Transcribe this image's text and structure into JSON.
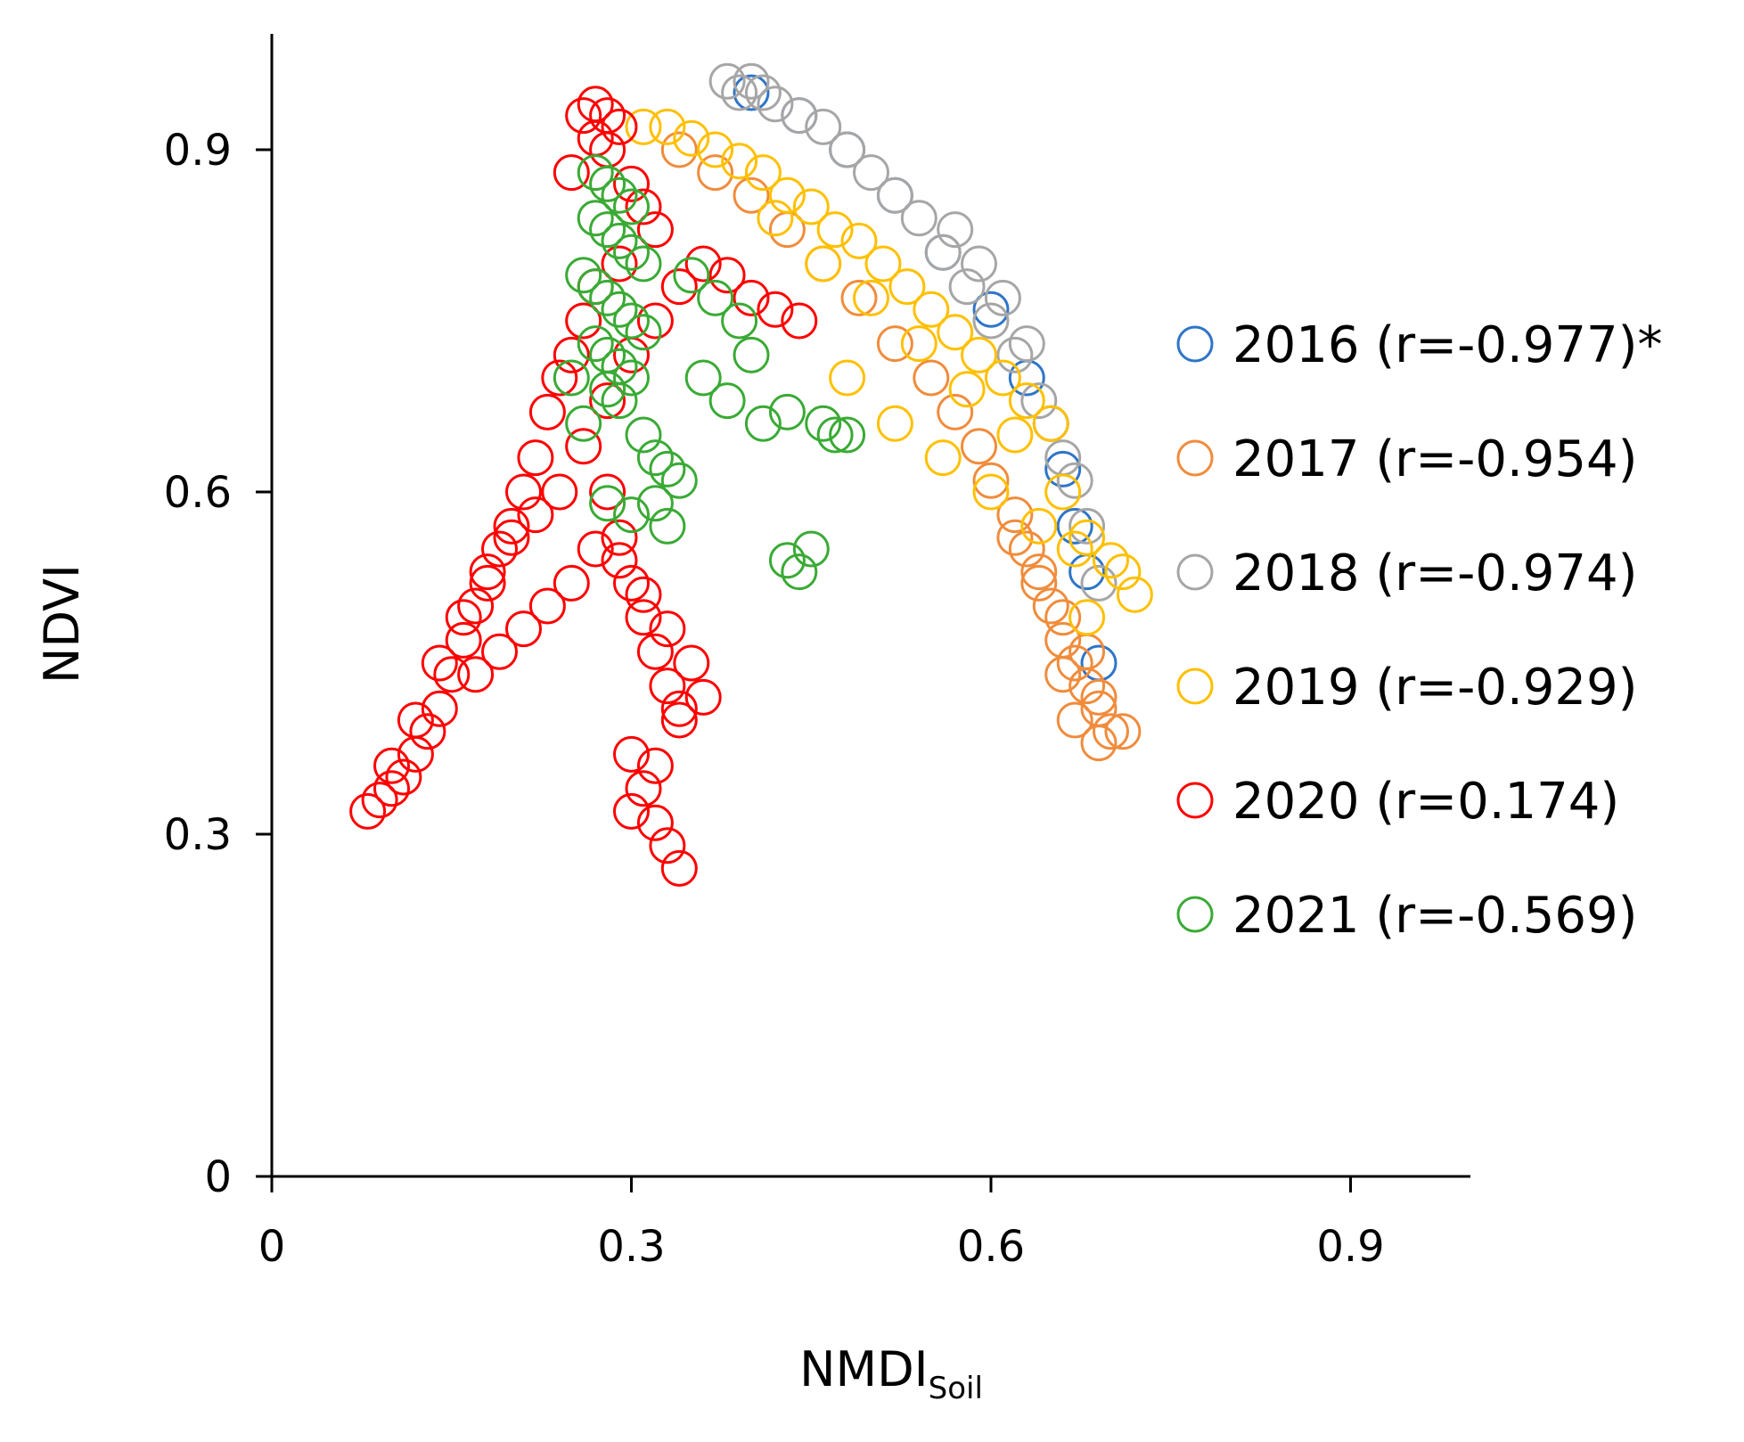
{
  "chart_data": {
    "type": "scatter",
    "title": "",
    "xlabel": "NMDI",
    "xlabel_subscript": "Soil",
    "ylabel": "NDVI",
    "xlim": [
      0,
      1.0
    ],
    "ylim": [
      0,
      1.0
    ],
    "xticks": [
      0,
      0.3,
      0.6,
      0.9
    ],
    "yticks": [
      0,
      0.3,
      0.6,
      0.9
    ],
    "xtick_labels": [
      "0",
      "0.3",
      "0.6",
      "0.9"
    ],
    "ytick_labels": [
      "0",
      "0.3",
      "0.6",
      "0.9"
    ],
    "marker": "open-circle",
    "legend_position": "right",
    "series": [
      {
        "name": "2016 (r=-0.977)*",
        "color": "#2E75C8",
        "x": [
          0.4,
          0.44,
          0.48,
          0.52,
          0.56,
          0.6,
          0.63,
          0.65,
          0.66,
          0.67,
          0.68,
          0.69
        ],
        "y": [
          0.95,
          0.93,
          0.9,
          0.86,
          0.81,
          0.76,
          0.7,
          0.66,
          0.62,
          0.57,
          0.53,
          0.45
        ]
      },
      {
        "name": "2017 (r=-0.954)",
        "color": "#F08C3C",
        "x": [
          0.34,
          0.37,
          0.4,
          0.43,
          0.46,
          0.49,
          0.52,
          0.55,
          0.57,
          0.59,
          0.6,
          0.62,
          0.63,
          0.64,
          0.65,
          0.66,
          0.67,
          0.68,
          0.69,
          0.7,
          0.62,
          0.64,
          0.66,
          0.68,
          0.69,
          0.71,
          0.66,
          0.67,
          0.69
        ],
        "y": [
          0.9,
          0.88,
          0.86,
          0.83,
          0.8,
          0.77,
          0.73,
          0.7,
          0.67,
          0.64,
          0.61,
          0.58,
          0.55,
          0.52,
          0.5,
          0.47,
          0.45,
          0.43,
          0.41,
          0.39,
          0.56,
          0.53,
          0.49,
          0.46,
          0.42,
          0.39,
          0.44,
          0.4,
          0.38
        ]
      },
      {
        "name": "2018 (r=-0.974)",
        "color": "#A6A6A6",
        "x": [
          0.38,
          0.39,
          0.4,
          0.41,
          0.42,
          0.44,
          0.46,
          0.48,
          0.5,
          0.52,
          0.54,
          0.56,
          0.58,
          0.6,
          0.62,
          0.64,
          0.65,
          0.66,
          0.67,
          0.68,
          0.69,
          0.57,
          0.59,
          0.61,
          0.63
        ],
        "y": [
          0.96,
          0.95,
          0.96,
          0.95,
          0.94,
          0.93,
          0.92,
          0.9,
          0.88,
          0.86,
          0.84,
          0.81,
          0.78,
          0.75,
          0.72,
          0.68,
          0.66,
          0.63,
          0.61,
          0.57,
          0.52,
          0.83,
          0.8,
          0.77,
          0.73
        ]
      },
      {
        "name": "2019 (r=-0.929)",
        "color": "#FFC000",
        "x": [
          0.31,
          0.33,
          0.35,
          0.37,
          0.39,
          0.41,
          0.43,
          0.45,
          0.47,
          0.49,
          0.51,
          0.53,
          0.55,
          0.57,
          0.59,
          0.61,
          0.63,
          0.65,
          0.42,
          0.46,
          0.5,
          0.54,
          0.58,
          0.62,
          0.66,
          0.68,
          0.7,
          0.72,
          0.48,
          0.52,
          0.56,
          0.6,
          0.64,
          0.67,
          0.71,
          0.68
        ],
        "y": [
          0.92,
          0.92,
          0.91,
          0.9,
          0.89,
          0.88,
          0.86,
          0.85,
          0.83,
          0.82,
          0.8,
          0.78,
          0.76,
          0.74,
          0.72,
          0.7,
          0.68,
          0.66,
          0.84,
          0.8,
          0.77,
          0.73,
          0.69,
          0.65,
          0.6,
          0.56,
          0.54,
          0.51,
          0.7,
          0.66,
          0.63,
          0.6,
          0.57,
          0.55,
          0.53,
          0.49
        ]
      },
      {
        "name": "2020 (r=0.174)",
        "color": "#FF0000",
        "x": [
          0.26,
          0.27,
          0.28,
          0.29,
          0.27,
          0.28,
          0.25,
          0.3,
          0.31,
          0.32,
          0.29,
          0.27,
          0.26,
          0.25,
          0.24,
          0.23,
          0.22,
          0.21,
          0.2,
          0.19,
          0.18,
          0.17,
          0.16,
          0.15,
          0.14,
          0.13,
          0.12,
          0.11,
          0.1,
          0.09,
          0.08,
          0.1,
          0.12,
          0.14,
          0.16,
          0.18,
          0.2,
          0.22,
          0.24,
          0.26,
          0.28,
          0.3,
          0.32,
          0.34,
          0.36,
          0.38,
          0.4,
          0.42,
          0.44,
          0.28,
          0.29,
          0.3,
          0.31,
          0.32,
          0.33,
          0.34,
          0.3,
          0.31,
          0.32,
          0.33,
          0.34,
          0.29,
          0.31,
          0.33,
          0.35,
          0.36,
          0.34,
          0.32,
          0.3,
          0.27,
          0.25,
          0.23,
          0.21,
          0.19,
          0.17
        ],
        "y": [
          0.93,
          0.94,
          0.93,
          0.92,
          0.91,
          0.9,
          0.88,
          0.87,
          0.85,
          0.83,
          0.8,
          0.78,
          0.75,
          0.72,
          0.7,
          0.67,
          0.63,
          0.6,
          0.57,
          0.55,
          0.52,
          0.5,
          0.47,
          0.44,
          0.41,
          0.39,
          0.37,
          0.35,
          0.34,
          0.33,
          0.32,
          0.36,
          0.4,
          0.45,
          0.49,
          0.53,
          0.56,
          0.58,
          0.6,
          0.64,
          0.68,
          0.72,
          0.75,
          0.78,
          0.8,
          0.79,
          0.77,
          0.76,
          0.75,
          0.6,
          0.56,
          0.52,
          0.49,
          0.46,
          0.43,
          0.41,
          0.37,
          0.34,
          0.31,
          0.29,
          0.27,
          0.54,
          0.51,
          0.48,
          0.45,
          0.42,
          0.4,
          0.36,
          0.32,
          0.55,
          0.52,
          0.5,
          0.48,
          0.46,
          0.44
        ]
      },
      {
        "name": "2021 (r=-0.569)",
        "color": "#3AAA35",
        "x": [
          0.27,
          0.28,
          0.29,
          0.3,
          0.27,
          0.28,
          0.29,
          0.3,
          0.31,
          0.26,
          0.27,
          0.28,
          0.29,
          0.3,
          0.31,
          0.27,
          0.28,
          0.29,
          0.3,
          0.28,
          0.29,
          0.25,
          0.26,
          0.31,
          0.32,
          0.33,
          0.35,
          0.37,
          0.39,
          0.4,
          0.41,
          0.43,
          0.46,
          0.47,
          0.48,
          0.45,
          0.44,
          0.43,
          0.36,
          0.38,
          0.34,
          0.32,
          0.3,
          0.28,
          0.33
        ],
        "y": [
          0.88,
          0.87,
          0.86,
          0.85,
          0.84,
          0.83,
          0.82,
          0.81,
          0.8,
          0.79,
          0.78,
          0.77,
          0.76,
          0.75,
          0.74,
          0.73,
          0.72,
          0.71,
          0.7,
          0.69,
          0.68,
          0.7,
          0.66,
          0.65,
          0.63,
          0.62,
          0.79,
          0.77,
          0.75,
          0.72,
          0.66,
          0.67,
          0.66,
          0.65,
          0.65,
          0.55,
          0.53,
          0.54,
          0.7,
          0.68,
          0.61,
          0.59,
          0.58,
          0.59,
          0.57
        ]
      }
    ]
  }
}
